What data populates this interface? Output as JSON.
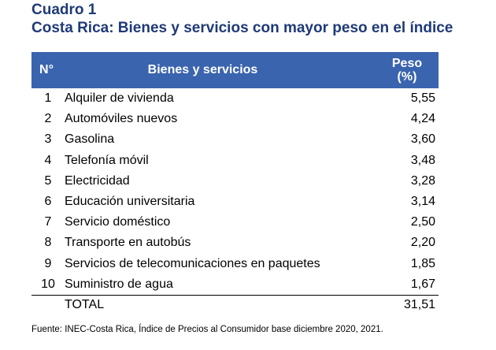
{
  "heading": {
    "label": "Cuadro 1",
    "title": "Costa Rica: Bienes y servicios con mayor peso en el índice"
  },
  "table": {
    "headers": {
      "number": "N°",
      "name": "Bienes y servicios",
      "weight_line1": "Peso",
      "weight_line2": "(%)"
    },
    "rows": [
      {
        "n": "1",
        "name": "Alquiler de vivienda",
        "peso": "5,55"
      },
      {
        "n": "2",
        "name": "Automóviles nuevos",
        "peso": "4,24"
      },
      {
        "n": "3",
        "name": "Gasolina",
        "peso": "3,60"
      },
      {
        "n": "4",
        "name": "Telefonía móvil",
        "peso": "3,48"
      },
      {
        "n": "5",
        "name": "Electricidad",
        "peso": "3,28"
      },
      {
        "n": "6",
        "name": "Educación universitaria",
        "peso": "3,14"
      },
      {
        "n": "7",
        "name": "Servicio doméstico",
        "peso": "2,50"
      },
      {
        "n": "8",
        "name": "Transporte en autobús",
        "peso": "2,20"
      },
      {
        "n": "9",
        "name": "Servicios de telecomunicaciones en paquetes",
        "peso": "1,85"
      },
      {
        "n": "10",
        "name": "Suministro de agua",
        "peso": "1,67"
      }
    ],
    "total": {
      "label": "TOTAL",
      "peso": "31,51"
    }
  },
  "source": "Fuente: INEC-Costa Rica, Índice de Precios al Consumidor base diciembre 2020, 2021.",
  "colors": {
    "header_bg": "#3a64ae",
    "title": "#1f3a77"
  }
}
